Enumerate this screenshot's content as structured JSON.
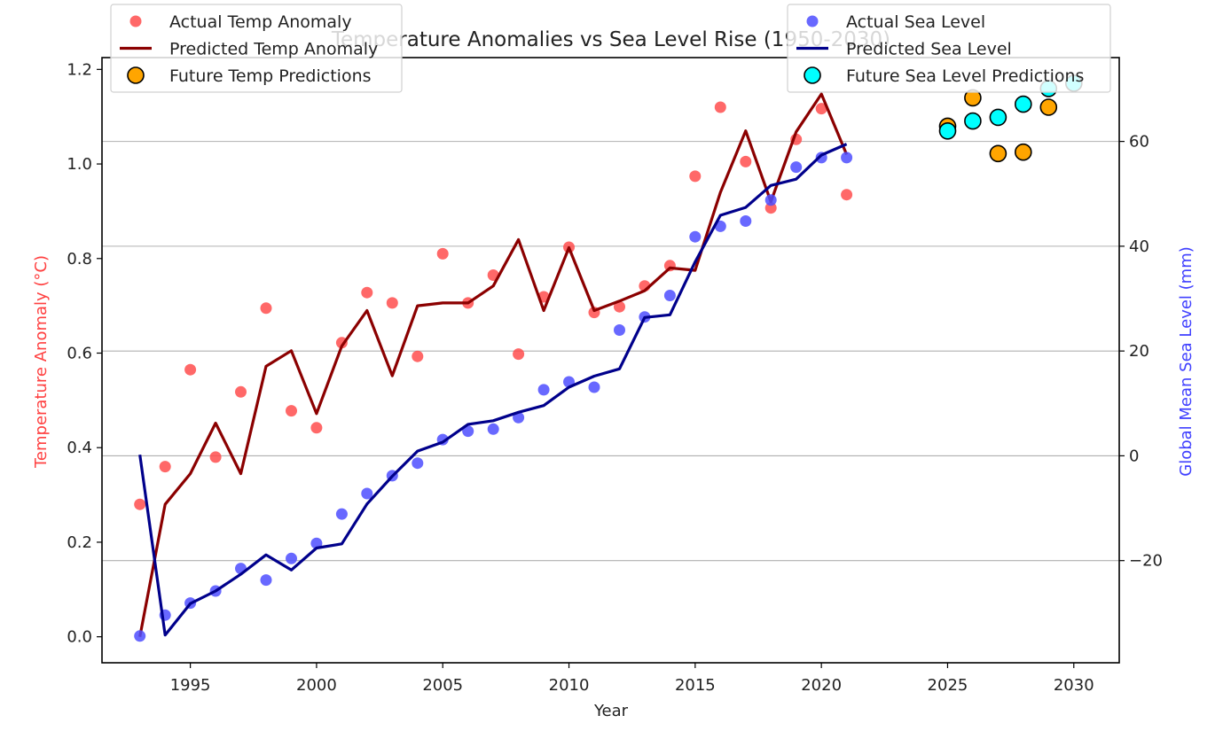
{
  "chart_data": {
    "type": "scatter",
    "title": "Temperature Anomalies vs Sea Level Rise (1950-2030)",
    "xlabel": "Year",
    "ylabel_left": "Temperature Anomaly (°C)",
    "ylabel_right": "Global Mean Sea Level (mm)",
    "xlim": [
      1991.5,
      2031.8
    ],
    "ylim_left": [
      -0.055,
      1.225
    ],
    "ylim_right": [
      -39.5,
      76
    ],
    "xticks": [
      1995,
      2000,
      2005,
      2010,
      2015,
      2020,
      2025,
      2030
    ],
    "yticks_left": [
      "0.0",
      "0.2",
      "0.4",
      "0.6",
      "0.8",
      "1.0",
      "1.2"
    ],
    "yticks_right": [
      "−20",
      "0",
      "20",
      "40",
      "60"
    ],
    "grid": "right-axis horizontal",
    "left_color": "#ff4040",
    "right_color": "#4040ff",
    "series": [
      {
        "name": "Actual Temp Anomaly",
        "kind": "scatter",
        "axis": "left",
        "color": "#ff4d4d",
        "x": [
          1993,
          1994,
          1995,
          1996,
          1997,
          1998,
          1999,
          2000,
          2001,
          2002,
          2003,
          2004,
          2005,
          2006,
          2007,
          2008,
          2009,
          2010,
          2011,
          2012,
          2013,
          2014,
          2015,
          2016,
          2017,
          2018,
          2019,
          2020,
          2021
        ],
        "y": [
          0.28,
          0.36,
          0.565,
          0.38,
          0.518,
          0.695,
          0.478,
          0.442,
          0.622,
          0.728,
          0.706,
          0.593,
          0.81,
          0.706,
          0.765,
          0.598,
          0.719,
          0.824,
          0.686,
          0.698,
          0.742,
          0.785,
          0.974,
          1.12,
          1.005,
          0.907,
          1.052,
          1.117,
          0.935
        ]
      },
      {
        "name": "Predicted Temp Anomaly",
        "kind": "line",
        "axis": "left",
        "color": "#8b0000",
        "x": [
          1993,
          1994,
          1995,
          1996,
          1997,
          1998,
          1999,
          2000,
          2001,
          2002,
          2003,
          2004,
          2005,
          2006,
          2007,
          2008,
          2009,
          2010,
          2011,
          2012,
          2013,
          2014,
          2015,
          2016,
          2017,
          2018,
          2019,
          2020,
          2021
        ],
        "y": [
          0.0,
          0.28,
          0.345,
          0.452,
          0.345,
          0.572,
          0.605,
          0.472,
          0.615,
          0.69,
          0.552,
          0.7,
          0.706,
          0.706,
          0.742,
          0.84,
          0.69,
          0.823,
          0.69,
          0.71,
          0.732,
          0.78,
          0.775,
          0.94,
          1.07,
          0.92,
          1.068,
          1.148,
          1.02
        ]
      },
      {
        "name": "Future Temp Predictions",
        "kind": "scatter",
        "axis": "left",
        "color": "#ffa500",
        "x": [
          2025,
          2026,
          2027,
          2028,
          2029
        ],
        "y": [
          1.08,
          1.14,
          1.022,
          1.025,
          1.12
        ]
      },
      {
        "name": "Actual Sea Level",
        "kind": "scatter",
        "axis": "right",
        "color": "#4d4dff",
        "x": [
          1993,
          1994,
          1995,
          1996,
          1997,
          1998,
          1999,
          2000,
          2001,
          2002,
          2003,
          2004,
          2005,
          2006,
          2007,
          2008,
          2009,
          2010,
          2011,
          2012,
          2013,
          2014,
          2015,
          2016,
          2017,
          2018,
          2019,
          2020,
          2021
        ],
        "y": [
          -34.4,
          -30.4,
          -28.1,
          -25.8,
          -21.5,
          -23.7,
          -19.6,
          -16.7,
          -11.1,
          -7.2,
          -3.8,
          -1.4,
          3.1,
          4.7,
          5.1,
          7.3,
          12.6,
          14.1,
          13.1,
          24.0,
          26.5,
          30.6,
          41.8,
          43.8,
          44.8,
          48.8,
          55.1,
          56.9,
          56.9
        ]
      },
      {
        "name": "Predicted Sea Level",
        "kind": "line",
        "axis": "right",
        "color": "#00008b",
        "x": [
          1993,
          1994,
          1995,
          1996,
          1997,
          1998,
          1999,
          2000,
          2001,
          2002,
          2003,
          2004,
          2005,
          2006,
          2007,
          2008,
          2009,
          2010,
          2011,
          2012,
          2013,
          2014,
          2015,
          2016,
          2017,
          2018,
          2019,
          2020,
          2021
        ],
        "y": [
          0.2,
          -34.2,
          -28.2,
          -25.8,
          -22.6,
          -18.9,
          -21.8,
          -17.6,
          -16.8,
          -9.2,
          -3.9,
          0.9,
          2.6,
          6.0,
          6.7,
          8.3,
          9.6,
          13.1,
          15.2,
          16.6,
          26.4,
          26.9,
          37.0,
          45.9,
          47.4,
          51.6,
          52.8,
          57.4,
          59.5
        ]
      },
      {
        "name": "Future Sea Level Predictions",
        "kind": "scatter",
        "axis": "right",
        "color": "#00ffff",
        "x": [
          2025,
          2026,
          2027,
          2028,
          2029,
          2030
        ],
        "y": [
          62.0,
          63.9,
          64.6,
          67.1,
          70.1,
          71.1
        ]
      }
    ]
  }
}
